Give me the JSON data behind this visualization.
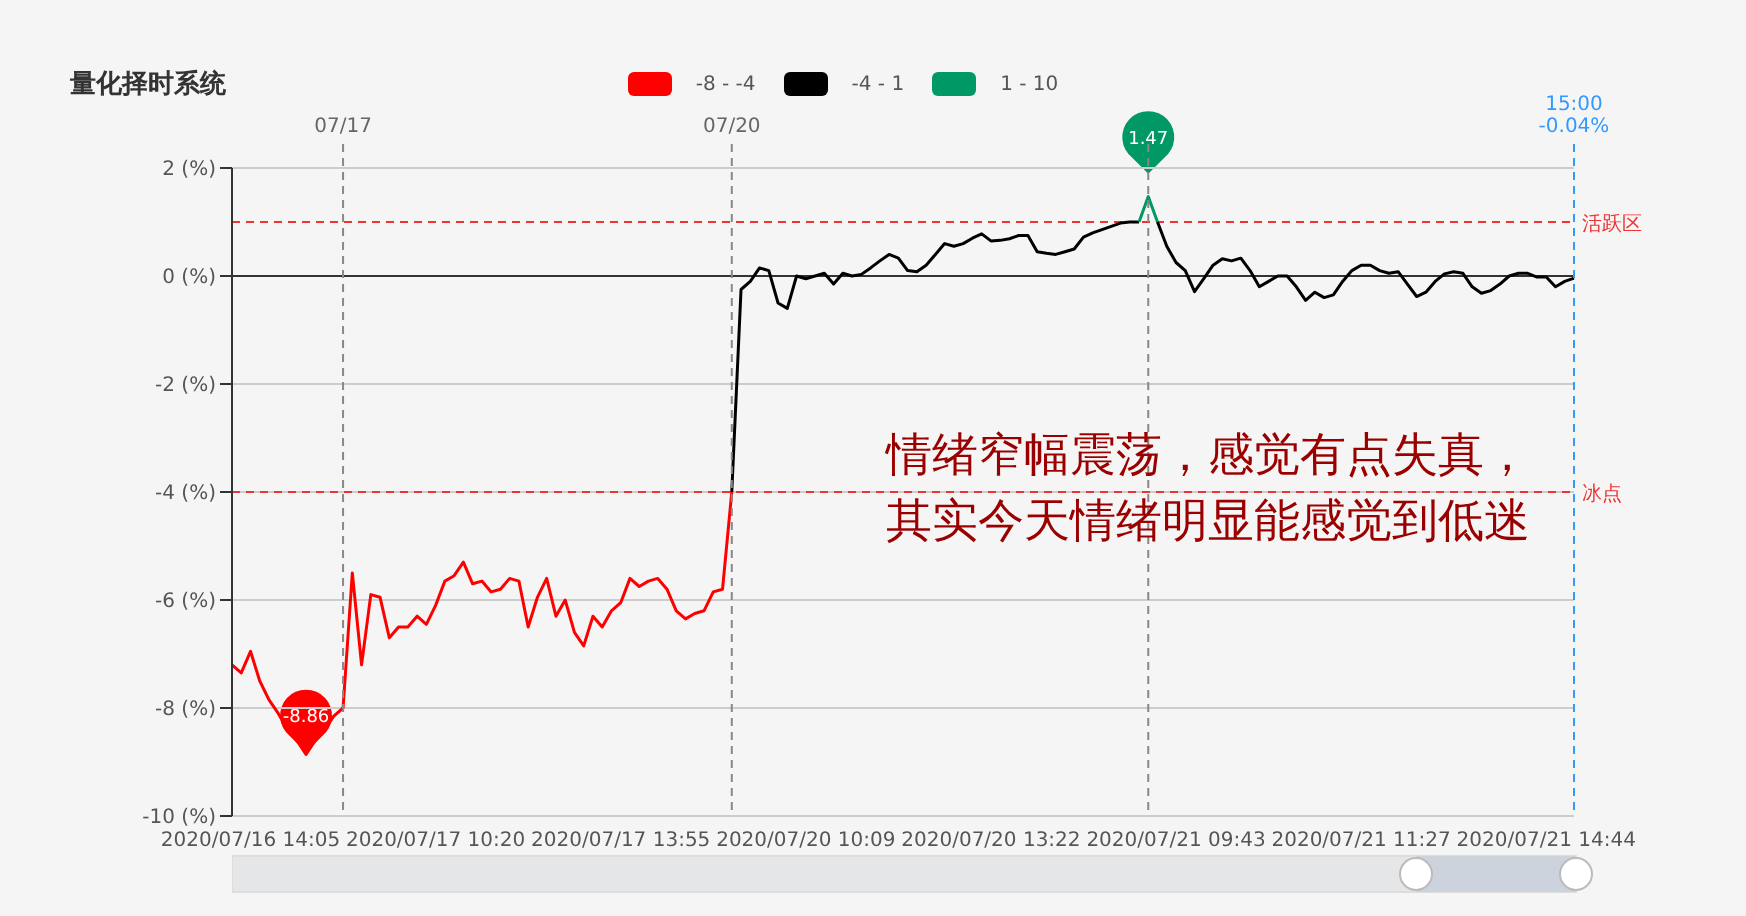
{
  "chart_data": {
    "type": "line",
    "title": "量化择时系统",
    "categories": [
      null,
      null,
      "2020/07/16 14:05",
      null,
      null,
      null,
      null,
      null,
      null,
      null,
      null,
      null,
      null,
      null,
      null,
      null,
      null,
      null,
      null,
      null,
      null,
      null,
      "2020/07/17 10:20",
      null,
      null,
      null,
      null,
      null,
      null,
      null,
      null,
      null,
      null,
      null,
      null,
      null,
      null,
      null,
      null,
      null,
      null,
      null,
      "2020/07/17 13:55",
      null,
      null,
      null,
      null,
      null,
      null,
      null,
      null,
      null,
      null,
      null,
      null,
      null,
      null,
      null,
      null,
      null,
      null,
      null,
      "2020/07/20 10:09",
      null,
      null,
      null,
      null,
      null,
      null,
      null,
      null,
      null,
      null,
      null,
      null,
      null,
      null,
      null,
      null,
      null,
      null,
      null,
      "2020/07/20 13:22",
      null,
      null,
      null,
      null,
      null,
      null,
      null,
      null,
      null,
      null,
      null,
      null,
      null,
      null,
      null,
      null,
      null,
      null,
      null,
      "2020/07/21 09:43",
      null,
      null,
      null,
      null,
      null,
      null,
      null,
      null,
      null,
      null,
      null,
      null,
      null,
      null,
      null,
      null,
      null,
      null,
      null,
      "2020/07/21 11:27",
      null,
      null,
      null,
      null,
      null,
      null,
      null,
      null,
      null,
      null,
      null,
      null,
      null,
      null,
      null,
      null,
      null,
      null,
      null,
      "2020/07/21 14:44",
      null,
      null,
      null
    ],
    "ylim": [
      -10,
      2
    ],
    "yticks": [
      {
        "value": -10,
        "label": "-10 (%)"
      },
      {
        "value": -8,
        "label": "-8 (%)"
      },
      {
        "value": -6,
        "label": "-6 (%)"
      },
      {
        "value": -4,
        "label": "-4 (%)"
      },
      {
        "value": -2,
        "label": "-2 (%)"
      },
      {
        "value": 0,
        "label": "0 (%)"
      },
      {
        "value": 2,
        "label": "2 (%)"
      }
    ],
    "grid": "y",
    "legend": "top",
    "marker": "none",
    "line_style": "solid",
    "series": [
      {
        "name": "-8 - -4",
        "color": "#ff0000",
        "values": [
          -7.2,
          -7.35,
          -6.95,
          -7.5,
          -7.85,
          -8.1,
          -8.4,
          -8.6,
          -8.86,
          -8.6,
          -8.4,
          -8.15,
          -8.0,
          -5.5,
          -7.2,
          -5.9,
          -5.95,
          -6.7,
          -6.5,
          -6.5,
          -6.3,
          -6.45,
          -6.1,
          -5.65,
          -5.55,
          -5.3,
          -5.7,
          -5.65,
          -5.85,
          -5.8,
          -5.6,
          -5.65,
          -6.5,
          -5.95,
          -5.6,
          -6.3,
          -6.0,
          -6.6,
          -6.85,
          -6.3,
          -6.5,
          -6.2,
          -6.05,
          -5.6,
          -5.75,
          -5.65,
          -5.6,
          -5.8,
          -6.2,
          -6.35,
          -6.25,
          -6.2,
          -5.85,
          -5.8,
          -4.0,
          null,
          null,
          null,
          null,
          null,
          null,
          null,
          null,
          null,
          null,
          null,
          null,
          null,
          null,
          null,
          null,
          null,
          null,
          null,
          null,
          null,
          null,
          null,
          null,
          null,
          null,
          null,
          null,
          null,
          null,
          null,
          null,
          null,
          null,
          null,
          null,
          null,
          null,
          null,
          null,
          null,
          null,
          null,
          null,
          null,
          null,
          null,
          null,
          null,
          null,
          null,
          null,
          null,
          null,
          null,
          null,
          null,
          null,
          null,
          null,
          null,
          null,
          null,
          null,
          null,
          null,
          null,
          null,
          null,
          null,
          null,
          null,
          null,
          null,
          null,
          null,
          null,
          null,
          null,
          null,
          null,
          null,
          null,
          null,
          null,
          null,
          null,
          null,
          null,
          null,
          null
        ]
      },
      {
        "name": "-4 - 1",
        "color": "#000000",
        "values": [
          null,
          null,
          null,
          null,
          null,
          null,
          null,
          null,
          null,
          null,
          null,
          null,
          null,
          null,
          null,
          null,
          null,
          null,
          null,
          null,
          null,
          null,
          null,
          null,
          null,
          null,
          null,
          null,
          null,
          null,
          null,
          null,
          null,
          null,
          null,
          null,
          null,
          null,
          null,
          null,
          null,
          null,
          null,
          null,
          null,
          null,
          null,
          null,
          null,
          null,
          null,
          null,
          null,
          null,
          -4.0,
          -0.25,
          -0.1,
          0.15,
          0.1,
          -0.5,
          -0.6,
          0.0,
          -0.05,
          0.0,
          0.05,
          -0.15,
          0.05,
          0.0,
          0.03,
          0.15,
          0.28,
          0.4,
          0.33,
          0.1,
          0.08,
          0.2,
          0.4,
          0.6,
          0.55,
          0.6,
          0.7,
          0.78,
          0.65,
          0.66,
          0.69,
          0.75,
          0.75,
          0.45,
          0.42,
          0.4,
          0.45,
          0.5,
          0.72,
          0.8,
          0.86,
          0.92,
          0.98,
          1.0,
          1.0,
          null,
          1.0,
          0.55,
          0.25,
          0.1,
          -0.29,
          -0.05,
          0.2,
          0.32,
          0.28,
          0.33,
          0.1,
          -0.2,
          -0.1,
          0.0,
          0.0,
          -0.2,
          -0.45,
          -0.3,
          -0.4,
          -0.35,
          -0.1,
          0.1,
          0.2,
          0.2,
          0.1,
          0.05,
          0.08,
          -0.15,
          -0.38,
          -0.3,
          -0.1,
          0.04,
          0.08,
          0.05,
          -0.2,
          -0.32,
          -0.27,
          -0.15,
          0.0,
          0.05,
          0.05,
          -0.02,
          -0.02,
          -0.2,
          -0.1,
          -0.04
        ]
      },
      {
        "name": "1 - 10",
        "color": "#009966",
        "values": [
          null,
          null,
          null,
          null,
          null,
          null,
          null,
          null,
          null,
          null,
          null,
          null,
          null,
          null,
          null,
          null,
          null,
          null,
          null,
          null,
          null,
          null,
          null,
          null,
          null,
          null,
          null,
          null,
          null,
          null,
          null,
          null,
          null,
          null,
          null,
          null,
          null,
          null,
          null,
          null,
          null,
          null,
          null,
          null,
          null,
          null,
          null,
          null,
          null,
          null,
          null,
          null,
          null,
          null,
          null,
          null,
          null,
          null,
          null,
          null,
          null,
          null,
          null,
          null,
          null,
          null,
          null,
          null,
          null,
          null,
          null,
          null,
          null,
          null,
          null,
          null,
          null,
          null,
          null,
          null,
          null,
          null,
          null,
          null,
          null,
          null,
          null,
          null,
          null,
          null,
          null,
          null,
          null,
          null,
          null,
          null,
          null,
          null,
          1.0,
          1.47,
          1.0,
          null,
          null,
          null,
          null,
          null,
          null,
          null,
          null,
          null,
          null,
          null,
          null,
          null,
          null,
          null,
          null,
          null,
          null,
          null,
          null,
          null,
          null,
          null,
          null,
          null,
          null,
          null,
          null,
          null,
          null,
          null,
          null,
          null,
          null,
          null,
          null,
          null,
          null,
          null,
          null,
          null,
          null,
          null,
          null,
          null
        ]
      }
    ],
    "ref_lines": [
      {
        "axis": "y",
        "value": 0,
        "label": null,
        "color": "#333333",
        "line_style": "solid"
      },
      {
        "axis": "y",
        "value": 1,
        "label": "活跃区",
        "color": "#ee3333",
        "line_style": "dashed"
      },
      {
        "axis": "y",
        "value": -4,
        "label": "冰点",
        "color": "#ee3333",
        "line_style": "dashed"
      }
    ],
    "annotations": [
      {
        "text": "-8.86",
        "y": -8.86
      },
      {
        "text": "1.47",
        "y": 1.47
      },
      "情绪窄幅震荡，感觉有点失真，",
      "其实今天情绪明显能感觉到低迷",
      "07/17",
      "07/20",
      "15:00\n-0.04%"
    ]
  }
}
